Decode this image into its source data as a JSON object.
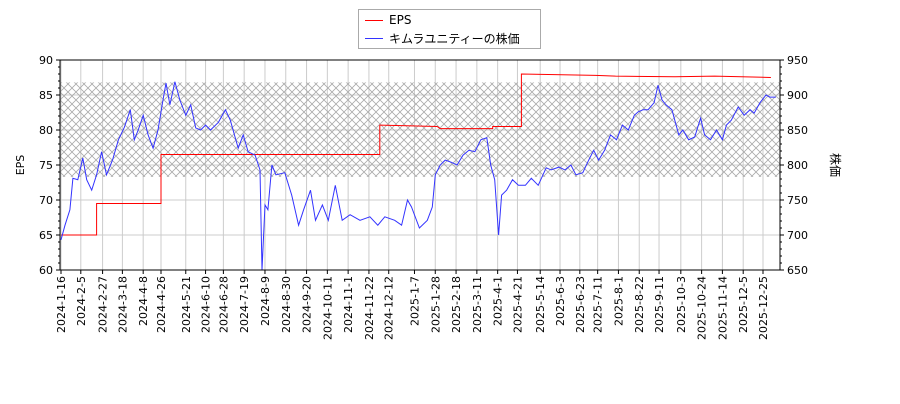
{
  "chart_data": {
    "type": "line",
    "ylabel": "EPS",
    "y2label": "株価",
    "ylim": [
      60,
      90
    ],
    "y2lim": [
      650,
      950
    ],
    "yticks": [
      60,
      65,
      70,
      75,
      80,
      85,
      90
    ],
    "y2ticks": [
      650,
      700,
      750,
      800,
      850,
      900,
      950
    ],
    "start_date": "2024-1-16",
    "xticks": [
      "2024-1-16",
      "2024-2-5",
      "2024-2-27",
      "2024-3-18",
      "2024-4-8",
      "2024-4-26",
      "2024-5-21",
      "2024-6-10",
      "2024-6-28",
      "2024-7-19",
      "2024-8-9",
      "2024-8-30",
      "2024-9-20",
      "2024-10-11",
      "2024-11-1",
      "2024-11-22",
      "2024-12-12",
      "2025-1-7",
      "2025-1-28",
      "2025-2-18",
      "2025-3-11",
      "2025-4-1",
      "2025-4-21",
      "2025-5-14",
      "2025-6-3",
      "2025-6-23",
      "2025-7-11",
      "2025-8-1",
      "2025-8-22",
      "2025-9-11",
      "2025-10-3",
      "2025-10-24",
      "2025-11-14",
      "2025-12-5",
      "2025-12-25"
    ],
    "band": [
      783,
      918
    ],
    "grid": true,
    "legend_position": "top-center",
    "series": [
      {
        "name": "EPS",
        "color": "#ff0000",
        "axis": "left",
        "points": [
          [
            0,
            65
          ],
          [
            36,
            65
          ],
          [
            36,
            69.5
          ],
          [
            101,
            69.5
          ],
          [
            101,
            76.5
          ],
          [
            322,
            76.5
          ],
          [
            322,
            80.7
          ],
          [
            380,
            80.5
          ],
          [
            383,
            80.2
          ],
          [
            436,
            80.2
          ],
          [
            436,
            80.5
          ],
          [
            465,
            80.5
          ],
          [
            465,
            88
          ],
          [
            540,
            87.8
          ],
          [
            560,
            87.7
          ],
          [
            620,
            87.6
          ],
          [
            660,
            87.7
          ],
          [
            717,
            87.5
          ]
        ]
      },
      {
        "name": "キムラユニティーの株価",
        "color": "#3333ff",
        "axis": "right",
        "points": [
          [
            0,
            693
          ],
          [
            4,
            714
          ],
          [
            9,
            736
          ],
          [
            12,
            781
          ],
          [
            17,
            779
          ],
          [
            22,
            810
          ],
          [
            26,
            779
          ],
          [
            31,
            764
          ],
          [
            36,
            786
          ],
          [
            41,
            819
          ],
          [
            46,
            786
          ],
          [
            52,
            807
          ],
          [
            58,
            836
          ],
          [
            64,
            854
          ],
          [
            70,
            879
          ],
          [
            74,
            836
          ],
          [
            78,
            850
          ],
          [
            83,
            871
          ],
          [
            88,
            843
          ],
          [
            93,
            824
          ],
          [
            98,
            850
          ],
          [
            103,
            893
          ],
          [
            106,
            917
          ],
          [
            110,
            886
          ],
          [
            115,
            919
          ],
          [
            120,
            893
          ],
          [
            126,
            871
          ],
          [
            131,
            886
          ],
          [
            136,
            853
          ],
          [
            141,
            850
          ],
          [
            146,
            857
          ],
          [
            151,
            850
          ],
          [
            159,
            861
          ],
          [
            166,
            879
          ],
          [
            171,
            864
          ],
          [
            179,
            824
          ],
          [
            184,
            843
          ],
          [
            189,
            819
          ],
          [
            196,
            814
          ],
          [
            201,
            793
          ],
          [
            203,
            650
          ],
          [
            206,
            743
          ],
          [
            209,
            736
          ],
          [
            213,
            800
          ],
          [
            217,
            786
          ],
          [
            226,
            789
          ],
          [
            233,
            757
          ],
          [
            240,
            714
          ],
          [
            245,
            736
          ],
          [
            252,
            764
          ],
          [
            257,
            721
          ],
          [
            264,
            743
          ],
          [
            270,
            721
          ],
          [
            277,
            771
          ],
          [
            284,
            721
          ],
          [
            292,
            729
          ],
          [
            302,
            721
          ],
          [
            312,
            726
          ],
          [
            320,
            714
          ],
          [
            327,
            726
          ],
          [
            337,
            721
          ],
          [
            344,
            714
          ],
          [
            350,
            750
          ],
          [
            354,
            740
          ],
          [
            362,
            710
          ],
          [
            370,
            721
          ],
          [
            375,
            740
          ],
          [
            378,
            786
          ],
          [
            383,
            800
          ],
          [
            388,
            807
          ],
          [
            394,
            804
          ],
          [
            400,
            800
          ],
          [
            406,
            814
          ],
          [
            412,
            821
          ],
          [
            418,
            819
          ],
          [
            424,
            836
          ],
          [
            430,
            839
          ],
          [
            434,
            800
          ],
          [
            438,
            779
          ],
          [
            442,
            700
          ],
          [
            445,
            757
          ],
          [
            450,
            764
          ],
          [
            456,
            779
          ],
          [
            462,
            771
          ],
          [
            469,
            771
          ],
          [
            475,
            781
          ],
          [
            482,
            771
          ],
          [
            490,
            796
          ],
          [
            495,
            793
          ],
          [
            503,
            797
          ],
          [
            509,
            793
          ],
          [
            515,
            800
          ],
          [
            520,
            786
          ],
          [
            527,
            789
          ],
          [
            533,
            807
          ],
          [
            538,
            821
          ],
          [
            543,
            807
          ],
          [
            549,
            821
          ],
          [
            555,
            843
          ],
          [
            561,
            836
          ],
          [
            567,
            857
          ],
          [
            573,
            850
          ],
          [
            579,
            871
          ],
          [
            583,
            876
          ],
          [
            588,
            879
          ],
          [
            593,
            879
          ],
          [
            599,
            889
          ],
          [
            603,
            914
          ],
          [
            607,
            893
          ],
          [
            611,
            886
          ],
          [
            617,
            879
          ],
          [
            624,
            843
          ],
          [
            628,
            850
          ],
          [
            634,
            836
          ],
          [
            640,
            840
          ],
          [
            646,
            867
          ],
          [
            650,
            843
          ],
          [
            656,
            836
          ],
          [
            662,
            850
          ],
          [
            668,
            836
          ],
          [
            672,
            857
          ],
          [
            677,
            864
          ],
          [
            684,
            883
          ],
          [
            690,
            871
          ],
          [
            696,
            879
          ],
          [
            700,
            874
          ],
          [
            706,
            889
          ],
          [
            712,
            900
          ],
          [
            716,
            897
          ],
          [
            722,
            897
          ]
        ]
      }
    ]
  }
}
